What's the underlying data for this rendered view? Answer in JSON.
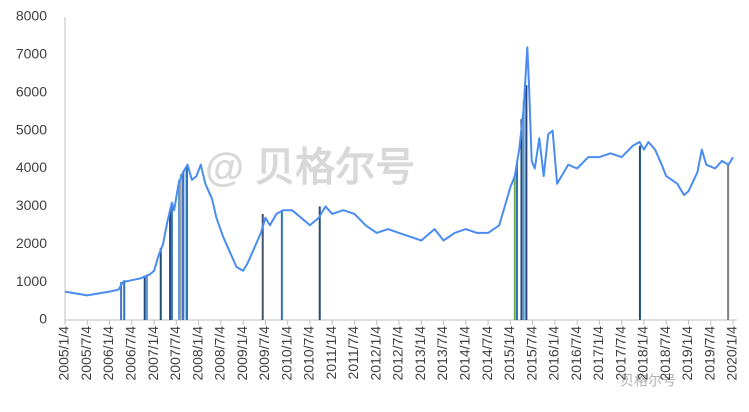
{
  "chart_data": {
    "type": "line",
    "annotations": [
      "@ 贝格尔号",
      "贝格尔号"
    ],
    "xlim": [
      2005.0,
      2020.0
    ],
    "xticks": [
      {
        "value": 2005.0,
        "label": "2005/1/4"
      },
      {
        "value": 2005.5,
        "label": "2005/7/4"
      },
      {
        "value": 2006.0,
        "label": "2006/1/4"
      },
      {
        "value": 2006.5,
        "label": "2006/7/4"
      },
      {
        "value": 2007.0,
        "label": "2007/1/4"
      },
      {
        "value": 2007.5,
        "label": "2007/7/4"
      },
      {
        "value": 2008.0,
        "label": "2008/1/4"
      },
      {
        "value": 2008.5,
        "label": "2008/7/4"
      },
      {
        "value": 2009.0,
        "label": "2009/1/4"
      },
      {
        "value": 2009.5,
        "label": "2009/7/4"
      },
      {
        "value": 2010.0,
        "label": "2010/1/4"
      },
      {
        "value": 2010.5,
        "label": "2010/7/4"
      },
      {
        "value": 2011.0,
        "label": "2011/1/4"
      },
      {
        "value": 2011.5,
        "label": "2011/7/4"
      },
      {
        "value": 2012.0,
        "label": "2012/1/4"
      },
      {
        "value": 2012.5,
        "label": "2012/7/4"
      },
      {
        "value": 2013.0,
        "label": "2013/1/4"
      },
      {
        "value": 2013.5,
        "label": "2013/7/4"
      },
      {
        "value": 2014.0,
        "label": "2014/1/4"
      },
      {
        "value": 2014.5,
        "label": "2014/7/4"
      },
      {
        "value": 2015.0,
        "label": "2015/1/4"
      },
      {
        "value": 2015.5,
        "label": "2015/7/4"
      },
      {
        "value": 2016.0,
        "label": "2016/1/4"
      },
      {
        "value": 2016.5,
        "label": "2016/7/4"
      },
      {
        "value": 2017.0,
        "label": "2017/1/4"
      },
      {
        "value": 2017.5,
        "label": "2017/7/4"
      },
      {
        "value": 2018.0,
        "label": "2018/1/4"
      },
      {
        "value": 2018.5,
        "label": "2018/7/4"
      },
      {
        "value": 2019.0,
        "label": "2019/1/4"
      },
      {
        "value": 2019.5,
        "label": "2019/7/4"
      },
      {
        "value": 2020.0,
        "label": "2020/1/4"
      }
    ],
    "ylim": [
      0,
      8000
    ],
    "yticks": [
      0,
      1000,
      2000,
      3000,
      4000,
      5000,
      6000,
      7000,
      8000
    ],
    "series": [
      {
        "type": "bar",
        "x": [
          2006.26,
          2006.33,
          2006.79,
          2006.84,
          2007.15,
          2007.36,
          2007.4,
          2007.56,
          2007.6,
          2007.65,
          2007.7,
          2007.74,
          2009.44,
          2009.87,
          2010.72,
          2015.1,
          2015.15,
          2015.25,
          2015.3,
          2015.36,
          2017.91,
          2019.89
        ],
        "values": [
          1000,
          1050,
          1150,
          1200,
          1900,
          2900,
          3000,
          3700,
          3850,
          3900,
          4000,
          4050,
          2800,
          2900,
          3000,
          3800,
          4200,
          5300,
          5800,
          6200,
          4600,
          4100
        ],
        "colors": [
          "#4472c4",
          "#2e75b6",
          "#264478",
          "#5b9bd5",
          "#1f4e79",
          "#264478",
          "#2e75b6",
          "#5b9bd5",
          "#a5a5a5",
          "#4472c4",
          "#9dc3e6",
          "#2e75b6",
          "#44546a",
          "#2e75b6",
          "#1f4e79",
          "#70ad47",
          "#2e75b6",
          "#1f4e79",
          "#5b9bd5",
          "#264478",
          "#1f4e79",
          "#7f7f7f"
        ]
      },
      {
        "type": "line",
        "color": "#4a8cf0",
        "x": [
          2005.0,
          2005.25,
          2005.5,
          2005.75,
          2006.0,
          2006.2,
          2006.3,
          2006.5,
          2006.7,
          2006.9,
          2007.0,
          2007.1,
          2007.2,
          2007.3,
          2007.4,
          2007.45,
          2007.55,
          2007.65,
          2007.75,
          2007.85,
          2007.95,
          2008.05,
          2008.15,
          2008.3,
          2008.4,
          2008.55,
          2008.7,
          2008.85,
          2009.0,
          2009.1,
          2009.25,
          2009.4,
          2009.5,
          2009.6,
          2009.75,
          2009.9,
          2010.1,
          2010.3,
          2010.5,
          2010.7,
          2010.85,
          2011.0,
          2011.25,
          2011.5,
          2011.75,
          2012.0,
          2012.25,
          2012.5,
          2012.75,
          2013.0,
          2013.1,
          2013.3,
          2013.5,
          2013.75,
          2014.0,
          2014.25,
          2014.5,
          2014.75,
          2014.9,
          2015.0,
          2015.1,
          2015.2,
          2015.3,
          2015.38,
          2015.42,
          2015.48,
          2015.55,
          2015.65,
          2015.75,
          2015.85,
          2015.95,
          2016.05,
          2016.15,
          2016.3,
          2016.5,
          2016.75,
          2017.0,
          2017.25,
          2017.5,
          2017.75,
          2017.9,
          2018.0,
          2018.1,
          2018.25,
          2018.4,
          2018.5,
          2018.75,
          2018.9,
          2019.0,
          2019.2,
          2019.3,
          2019.4,
          2019.6,
          2019.75,
          2019.9,
          2020.0
        ],
        "values": [
          750,
          700,
          650,
          700,
          750,
          800,
          1000,
          1050,
          1100,
          1200,
          1300,
          1700,
          2000,
          2600,
          3100,
          2900,
          3600,
          3900,
          4100,
          3700,
          3800,
          4100,
          3600,
          3200,
          2700,
          2200,
          1800,
          1400,
          1300,
          1500,
          1900,
          2300,
          2700,
          2500,
          2800,
          2900,
          2900,
          2700,
          2500,
          2700,
          3000,
          2800,
          2900,
          2800,
          2500,
          2300,
          2400,
          2300,
          2200,
          2100,
          2200,
          2400,
          2100,
          2300,
          2400,
          2300,
          2300,
          2500,
          3100,
          3500,
          3800,
          4500,
          5600,
          7200,
          6200,
          4200,
          4000,
          4800,
          3800,
          4900,
          5000,
          3600,
          3800,
          4100,
          4000,
          4300,
          4300,
          4400,
          4300,
          4600,
          4700,
          4500,
          4700,
          4500,
          4100,
          3800,
          3600,
          3300,
          3400,
          3900,
          4500,
          4100,
          4000,
          4200,
          4100,
          4300
        ]
      }
    ]
  }
}
